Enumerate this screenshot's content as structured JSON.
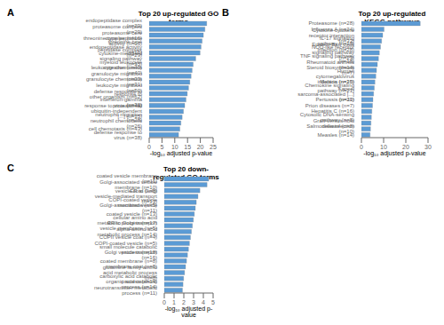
{
  "chart_data": [
    {
      "type": "bar",
      "orientation": "horizontal",
      "annotations": [
        "A"
      ],
      "title": "Top 20 up-regulated GO terms",
      "xlabel": "-log₁₀ adjusted p-value",
      "categories": [
        "endopeptidase complex (n=29)",
        "proteasome complex (n=29)",
        "proteasome core complex (n=16)",
        "threonine-type peptidase activity (n=16)",
        "threonine-type endopeptidase activity (n=16)",
        "peptidase complex (n=29)",
        "cytokine-mediated signaling pathway (n=55)",
        "myeloid leukocyte migration (n=40)",
        "leukocyte chemotaxis (n=40)",
        "granulocyte migration (n=33)",
        "granulocyte chemotaxis (n=31)",
        "leukocyte migration (n=50)",
        "defense response to other organism (n=62)",
        "response to interferon-gamma (n=32)",
        "response to virus (n=45)",
        "proteasomal ubiquitin-independent [...] (n=15)",
        "neutrophil migration (n=28)",
        "neutrophil chemotaxis (n=26)",
        "cell chemotaxis (n=43)",
        "defense response to virus (n=38)"
      ],
      "values": [
        22.5,
        21.8,
        21.2,
        20.7,
        20.3,
        19.9,
        18.2,
        17.2,
        16.8,
        16.4,
        15.9,
        15.4,
        14.9,
        14.4,
        13.9,
        13.4,
        12.9,
        12.4,
        12.0,
        11.5
      ],
      "color": "#5b9bd5",
      "xlim": [
        0,
        25
      ],
      "xticks": [
        0,
        5,
        10,
        15,
        20,
        25
      ]
    },
    {
      "type": "bar",
      "orientation": "horizontal",
      "annotations": [
        "B"
      ],
      "title": "Top 20 up-regulated KEGG pathways",
      "xlabel": "-log₁₀ adjusted p-value",
      "categories": [
        "Proteasome (n=28)",
        "Influenza A (n=24)",
        "Cytokine-cytokine receptor interaction (n=33)",
        "IL-17 signaling pathway (n=18)",
        "Epstein-Barr virus infection (n=28)",
        "NOD-like receptor signaling pathway (n=23)",
        "TNF signaling pathway (n=18)",
        "Rheumatoid arthritis (n=14)",
        "Steroid biosynthesis (n=7)",
        "Human cytomegalovirus infection (n=25)",
        "Malaria (n=10)",
        "Chemokine signaling pathway (n=21)",
        "Kaposi sarcoma-associated [...] (n=20)",
        "Pertussis (n=11)",
        "Prion diseases (n=7)",
        "Hepatitis C (n=16)",
        "Cytosolic DNA-sensing pathway (n=8)",
        "Graft-versus-host disease (n=8)",
        "Salmonella infection (n=10)",
        "Measles (n=14)"
      ],
      "values": [
        26.5,
        10.2,
        9.6,
        9.1,
        8.6,
        8.1,
        7.7,
        7.2,
        6.8,
        6.5,
        6.1,
        5.8,
        5.5,
        5.2,
        5.0,
        4.7,
        4.5,
        4.3,
        4.1,
        3.9
      ],
      "color": "#5b9bd5",
      "xlim": [
        0,
        30
      ],
      "xticks": [
        0,
        10,
        20,
        30
      ]
    },
    {
      "type": "bar",
      "orientation": "horizontal",
      "annotations": [
        "C"
      ],
      "title": "Top 20 down-regulated GO terms",
      "xlabel": "-log₁₀ adjusted p-value",
      "categories": [
        "coated vesicle membrane (n=11)",
        "Golgi-associated vesicle membrane (n=10)",
        "vesicle coat (n=8)",
        "ER to Golgi vesicle-mediated transport (n=13)",
        "COPI-coated vesicle membrane (n=5)",
        "Golgi-associated vesicle (n=11)",
        "coated vesicle (n=13)",
        "cellular amino acid metabolic process (n=17)",
        "ER to Golgi transport vesicle membrane (n=5)",
        "alpha-amino acid metabolic process (n=14)",
        "COPII vesicle coat (n=4)",
        "COPI-coated vesicle (n=5)",
        "small molecule catabolic process (n=18)",
        "Golgi vesicle transport (n=16)",
        "coated membrane (n=8)",
        "membrane coat (n=8)",
        "glutamine family amino acid metabolic process (n=8)",
        "carboxylic acid catabolic process (n=14)",
        "organic acid catabolic process (n=14)",
        "neurotransmitter metabolic process (n=11)"
      ],
      "values": [
        4.55,
        4.38,
        3.65,
        3.45,
        3.28,
        3.18,
        3.08,
        2.98,
        2.88,
        2.78,
        2.68,
        2.58,
        2.48,
        2.38,
        2.28,
        2.18,
        2.08,
        1.98,
        1.92,
        1.86
      ],
      "color": "#5b9bd5",
      "xlim": [
        0,
        5
      ],
      "xticks": [
        0,
        1,
        2,
        3,
        4,
        5
      ]
    }
  ]
}
